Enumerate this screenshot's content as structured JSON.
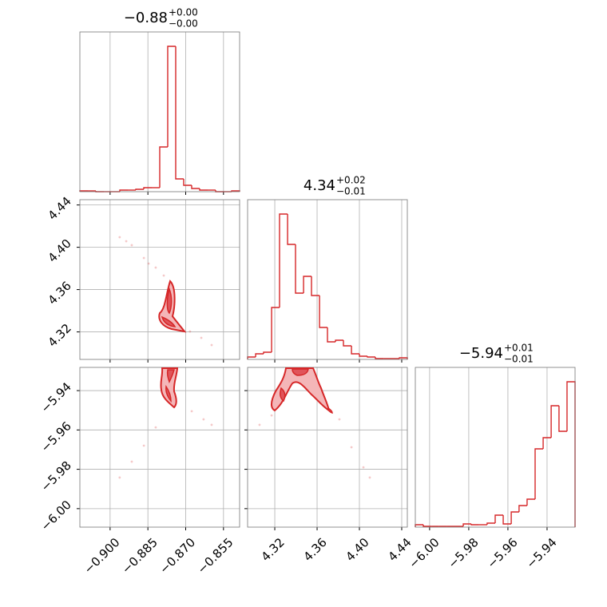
{
  "chart_data": [
    {
      "type": "histogram",
      "title": "−0.88",
      "title_sup": "+0.00",
      "title_sub": "−0.00",
      "color": "#d62728",
      "grid": true,
      "bins": [
        -0.912,
        -0.90883,
        -0.90566,
        -0.90249,
        -0.89932,
        -0.89615,
        -0.89298,
        -0.88981,
        -0.88664,
        -0.88347,
        -0.8803,
        -0.87713,
        -0.87396,
        -0.87079,
        -0.86762,
        -0.86445,
        -0.86128,
        -0.85811,
        -0.85494,
        -0.85177,
        -0.8486
      ],
      "values": [
        1,
        1,
        0,
        0,
        0,
        2,
        2,
        3,
        5,
        5,
        56,
        182,
        16,
        8,
        4,
        2,
        2,
        0,
        0,
        1
      ],
      "xlim": [
        -0.912,
        -0.8486
      ],
      "ylim": [
        0,
        200
      ],
      "xticks": [
        {
          "value": -0.9,
          "label": "−0.900"
        },
        {
          "value": -0.885,
          "label": "−0.885"
        },
        {
          "value": -0.87,
          "label": "−0.870"
        },
        {
          "value": -0.855,
          "label": "−0.855"
        }
      ]
    },
    {
      "type": "scatter",
      "color": "#d62728",
      "grid": true,
      "x": [
        -0.8962,
        -0.8936,
        -0.8914,
        -0.8866,
        -0.8847,
        -0.8819,
        -0.8787,
        -0.8683,
        -0.8638,
        -0.8597
      ],
      "y": [
        4.4095,
        4.4057,
        4.402,
        4.3899,
        4.3846,
        4.3808,
        4.3733,
        4.3204,
        4.3144,
        4.3076
      ],
      "xlim": [
        -0.912,
        -0.8486
      ],
      "ylim": [
        4.294,
        4.445
      ],
      "xticks": [
        {
          "value": -0.9,
          "label": "−0.900"
        },
        {
          "value": -0.885,
          "label": "−0.885"
        },
        {
          "value": -0.87,
          "label": "−0.870"
        },
        {
          "value": -0.855,
          "label": "−0.855"
        }
      ],
      "yticks": [
        4.32,
        4.36,
        {
          "value": 4.4,
          "label": "4.40"
        },
        4.44
      ]
    },
    {
      "type": "histogram",
      "title": "4.34",
      "title_sup": "+0.02",
      "title_sub": "−0.01",
      "color": "#d62728",
      "grid": true,
      "bins": [
        4.2943,
        4.3019,
        4.3094,
        4.317,
        4.3245,
        4.3321,
        4.3396,
        4.3472,
        4.3547,
        4.3623,
        4.3698,
        4.3774,
        4.3849,
        4.3925,
        4.4,
        4.4076,
        4.4151,
        4.4227,
        4.4302,
        4.4378,
        4.4453
      ],
      "values": [
        3,
        7,
        9,
        65,
        182,
        144,
        83,
        104,
        80,
        40,
        22,
        24,
        17,
        7,
        4,
        3,
        1,
        1,
        1,
        2
      ],
      "xlim": [
        4.2943,
        4.4453
      ],
      "ylim": [
        0,
        200
      ],
      "xticks": [
        4.32,
        4.36,
        {
          "value": 4.4,
          "label": "4.40"
        },
        4.44
      ]
    },
    {
      "type": "scatter",
      "color": "#d62728",
      "grid": true,
      "x": [
        -0.8962,
        -0.8914,
        -0.8866,
        -0.8819,
        -0.8676,
        -0.8629,
        -0.8597
      ],
      "y": [
        -5.9842,
        -5.9761,
        -5.968,
        -5.9587,
        -5.9505,
        -5.9546,
        -5.9574
      ],
      "xlim": [
        -0.912,
        -0.8486
      ],
      "ylim": [
        -6.0094,
        -5.9282
      ],
      "xticks": [
        {
          "value": -0.9,
          "label": "−0.900"
        },
        {
          "value": -0.885,
          "label": "−0.885"
        },
        {
          "value": -0.87,
          "label": "−0.870"
        },
        {
          "value": -0.855,
          "label": "−0.855"
        }
      ],
      "yticks": [
        {
          "value": -6.0,
          "label": "−6.00"
        },
        {
          "value": -5.98,
          "label": "−5.98"
        },
        {
          "value": -5.96,
          "label": "−5.96"
        },
        {
          "value": -5.94,
          "label": "−5.94"
        }
      ]
    },
    {
      "type": "scatter",
      "color": "#d62728",
      "grid": true,
      "x": [
        4.3056,
        4.317,
        4.3811,
        4.3925,
        4.4038,
        4.4098
      ],
      "y": [
        -5.9574,
        -5.9526,
        -5.9546,
        -5.9688,
        -5.979,
        -5.9842
      ],
      "xlim": [
        4.2943,
        4.4453
      ],
      "ylim": [
        -6.0094,
        -5.9282
      ],
      "xticks": [
        4.32,
        4.36,
        {
          "value": 4.4,
          "label": "4.40"
        },
        4.44
      ],
      "yticks": [
        {
          "value": -6.0,
          "label": "−6.00"
        },
        {
          "value": -5.98,
          "label": "−5.98"
        },
        {
          "value": -5.96,
          "label": "−5.96"
        },
        {
          "value": -5.94,
          "label": "−5.94"
        }
      ]
    },
    {
      "type": "histogram",
      "title": "−5.94",
      "title_sup": "+0.01",
      "title_sub": "−0.01",
      "color": "#d62728",
      "grid": true,
      "bins": [
        -6.0073,
        -6.0032,
        -5.9991,
        -5.9951,
        -5.991,
        -5.9869,
        -5.9828,
        -5.9787,
        -5.9747,
        -5.9706,
        -5.9665,
        -5.9624,
        -5.9583,
        -5.9543,
        -5.9502,
        -5.9461,
        -5.942,
        -5.9379,
        -5.9339,
        -5.9298,
        -5.9257
      ],
      "values": [
        3,
        1,
        1,
        1,
        1,
        1,
        4,
        3,
        3,
        5,
        15,
        4,
        19,
        27,
        35,
        98,
        112,
        152,
        120,
        182
      ],
      "xlim": [
        -6.0073,
        -5.9257
      ],
      "ylim": [
        0,
        200
      ],
      "xticks": [
        {
          "value": -6.0,
          "label": "−6.00"
        },
        {
          "value": -5.98,
          "label": "−5.98"
        },
        {
          "value": -5.96,
          "label": "−5.96"
        },
        {
          "value": -5.94,
          "label": "−5.94"
        }
      ]
    }
  ]
}
